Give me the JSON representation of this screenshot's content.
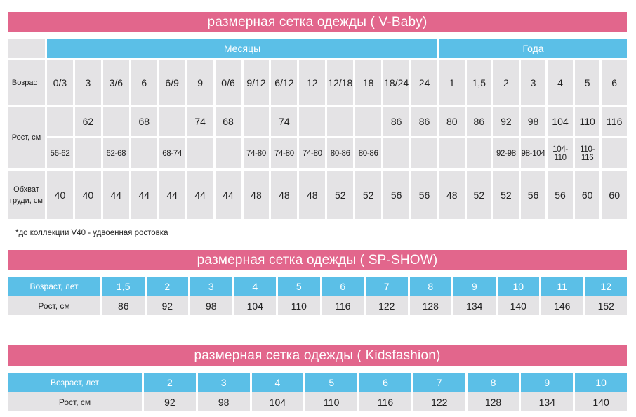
{
  "vbaby": {
    "title": "размерная сетка одежды ( V-Baby)",
    "group_months": "Месяцы",
    "group_years": "Года",
    "row_age_label": "Возраст",
    "row_height_label": "Рост, см",
    "row_chest_label": "Обхват груди, см",
    "ages": [
      "0/3",
      "3",
      "3/6",
      "6",
      "6/9",
      "9",
      "0/6",
      "9/12",
      "6/12",
      "12",
      "12/18",
      "18",
      "18/24",
      "24",
      "1",
      "1,5",
      "2",
      "3",
      "4",
      "5",
      "6"
    ],
    "height_main": [
      "",
      "62",
      "",
      "68",
      "",
      "74",
      "68",
      "",
      "74",
      "",
      "",
      "",
      "86",
      "86",
      "80",
      "86",
      "92",
      "98",
      "104",
      "110",
      "116"
    ],
    "height_range": [
      "56-62",
      "",
      "62-68",
      "",
      "68-74",
      "",
      "",
      "74-80",
      "74-80",
      "74-80",
      "80-86",
      "80-86",
      "",
      "",
      "",
      "",
      "92-98",
      "98-104",
      "104-110",
      "110-116",
      ""
    ],
    "chest": [
      "40",
      "40",
      "44",
      "44",
      "44",
      "44",
      "44",
      "48",
      "48",
      "48",
      "52",
      "52",
      "56",
      "56",
      "48",
      "52",
      "52",
      "56",
      "56",
      "60",
      "60"
    ],
    "footnote": "*до коллекции V40 - удвоенная ростовка"
  },
  "spshow": {
    "title": "размерная сетка одежды ( SP-SHOW)",
    "age_label": "Возраст, лет",
    "height_label": "Рост, см",
    "ages": [
      "1,5",
      "2",
      "3",
      "4",
      "5",
      "6",
      "7",
      "8",
      "9",
      "10",
      "11",
      "12"
    ],
    "heights": [
      "86",
      "92",
      "98",
      "104",
      "110",
      "116",
      "122",
      "128",
      "134",
      "140",
      "146",
      "152"
    ]
  },
  "kidsfashion": {
    "title": "размерная сетка одежды ( Kidsfashion)",
    "age_label": "Возраст, лет",
    "height_label": "Рост, см",
    "ages": [
      "2",
      "3",
      "4",
      "5",
      "6",
      "7",
      "8",
      "9",
      "10"
    ],
    "heights": [
      "92",
      "98",
      "104",
      "110",
      "116",
      "122",
      "128",
      "134",
      "140"
    ]
  },
  "colors": {
    "banner": "#e2668c",
    "header_blue": "#5bbfe7",
    "cell_grey": "#e4e3e5"
  }
}
